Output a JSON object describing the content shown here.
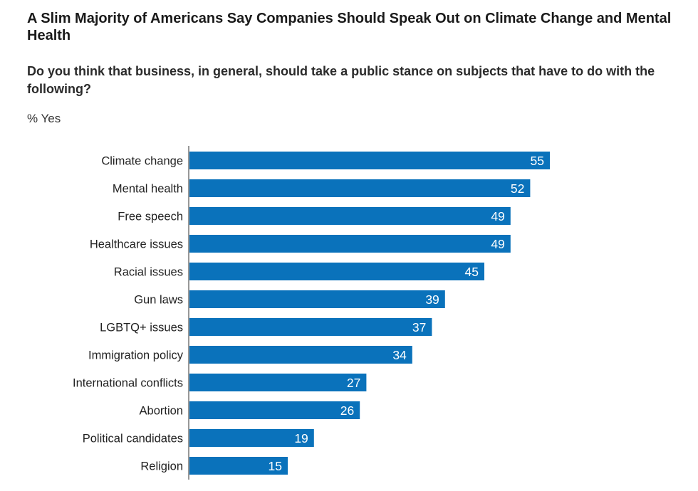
{
  "chart_data": {
    "type": "bar",
    "orientation": "horizontal",
    "title": "A Slim Majority of Americans Say Companies Should Speak Out on Climate Change and Mental Health",
    "subtitle": "Do you think that business, in general, should take a public stance on subjects that have to do with the following?",
    "unit_label": "% Yes",
    "categories": [
      "Climate change",
      "Mental health",
      "Free speech",
      "Healthcare issues",
      "Racial issues",
      "Gun laws",
      "LGBTQ+ issues",
      "Immigration policy",
      "International conflicts",
      "Abortion",
      "Political candidates",
      "Religion"
    ],
    "values": [
      55,
      52,
      49,
      49,
      45,
      39,
      37,
      34,
      27,
      26,
      19,
      15
    ],
    "xlim": [
      0,
      55
    ],
    "grid": false,
    "data_labels": true,
    "bar_color": "#0a72bb"
  }
}
